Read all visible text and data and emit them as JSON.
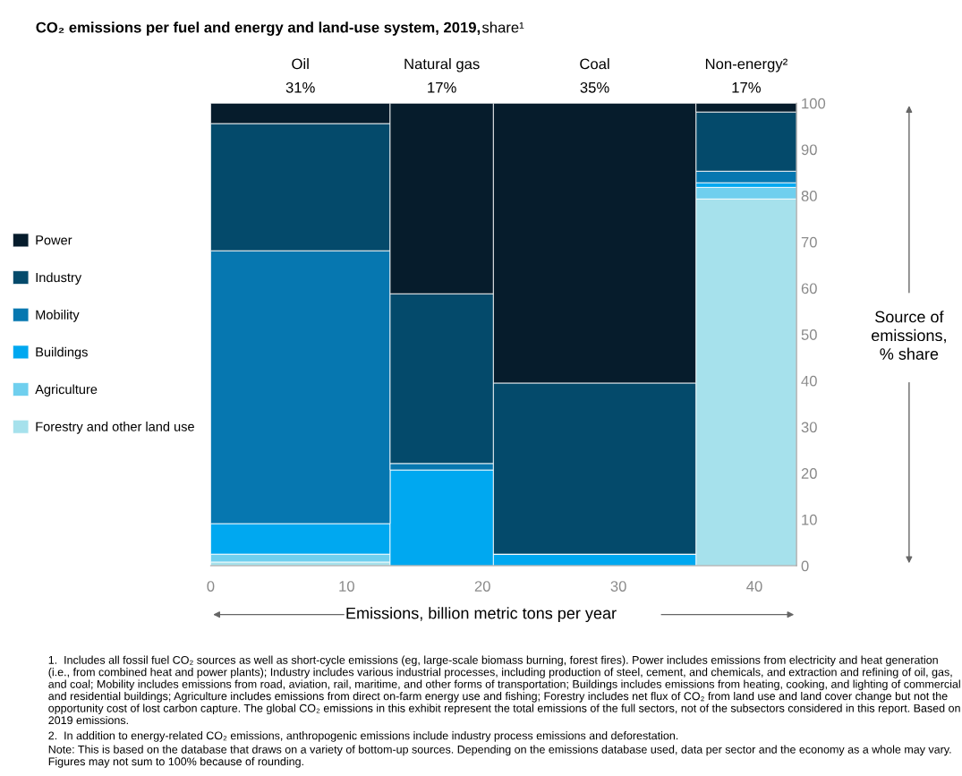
{
  "chart_data": {
    "type": "bar",
    "stacked": true,
    "title": "CO₂ emissions per fuel and energy and land-use system, 2019,",
    "subtitle": "share¹",
    "x": [
      6.6,
      17.0,
      28.25,
      39.4
    ],
    "series": [
      {
        "name": "Forestry and other land use",
        "color": "#a6e1ec",
        "values": [
          0.8,
          0,
          0,
          79.3
        ]
      },
      {
        "name": "Agriculture",
        "color": "#6fcfee",
        "values": [
          1.7,
          0,
          0,
          2.5
        ]
      },
      {
        "name": "Buildings",
        "color": "#00a8f0",
        "values": [
          6.6,
          20.7,
          2.5,
          1.0
        ]
      },
      {
        "name": "Mobility",
        "color": "#0677b0",
        "values": [
          59.0,
          1.4,
          0,
          2.5
        ]
      },
      {
        "name": "Industry",
        "color": "#044a6b",
        "values": [
          27.5,
          36.7,
          37.0,
          12.8
        ]
      },
      {
        "name": "Power",
        "color": "#061c2c",
        "values": [
          4.4,
          41.2,
          60.5,
          1.9
        ]
      }
    ],
    "xlim": [
      0,
      43.1
    ],
    "xticks": [
      0,
      10,
      20,
      30,
      40
    ],
    "ylim": [
      0,
      100
    ],
    "yticks": [
      0,
      10,
      20,
      30,
      40,
      50,
      60,
      70,
      80,
      90,
      100
    ],
    "xlabel": "Emissions, billion metric tons per year",
    "ylabel": "Source of\nemissions,\n% share",
    "legend": "left",
    "grid": false,
    "annotations": [
      {
        "text": "Oil\n31%",
        "x": 6.6,
        "y": 100
      },
      {
        "text": "Natural gas\n17%",
        "x": 17.0,
        "y": 100
      },
      {
        "text": "Coal\n35%",
        "x": 28.25,
        "y": 100
      },
      {
        "text": "Non-energy²\n17%",
        "x": 39.4,
        "y": 100
      },
      "1.  Includes all fossil fuel CO₂ sources as well as short-cycle emissions (eg, large-scale biomass burning, forest fires). Power includes emissions from electricity and heat generation (i.e., from combined heat and power plants); Industry includes various industrial processes, including production of steel, cement, and chemicals, and extraction and refining of oil, gas, and coal; Mobility includes emissions from road, aviation, rail, maritime, and other forms of transportation; Buildings includes emissions from heating, cooking, and lighting of commercial and residential buildings; Agriculture includes emissions from direct on-farm energy use and fishing; Forestry includes net flux of CO₂ from land use and land cover change but not the opportunity cost of lost carbon capture. The global CO₂ emissions in this exhibit represent the total emissions of the full sectors, not of the subsectors considered in this report. Based on 2019 emissions.",
      "2.  In addition to energy-related CO₂ emissions, anthropogenic emissions include industry process emissions and deforestation.",
      "Note: This is based on the database that draws on a variety of bottom-up sources. Depending on the emissions database used, data per sector and the economy as a whole may vary. Figures may not sum to 100% because of rounding."
    ]
  }
}
